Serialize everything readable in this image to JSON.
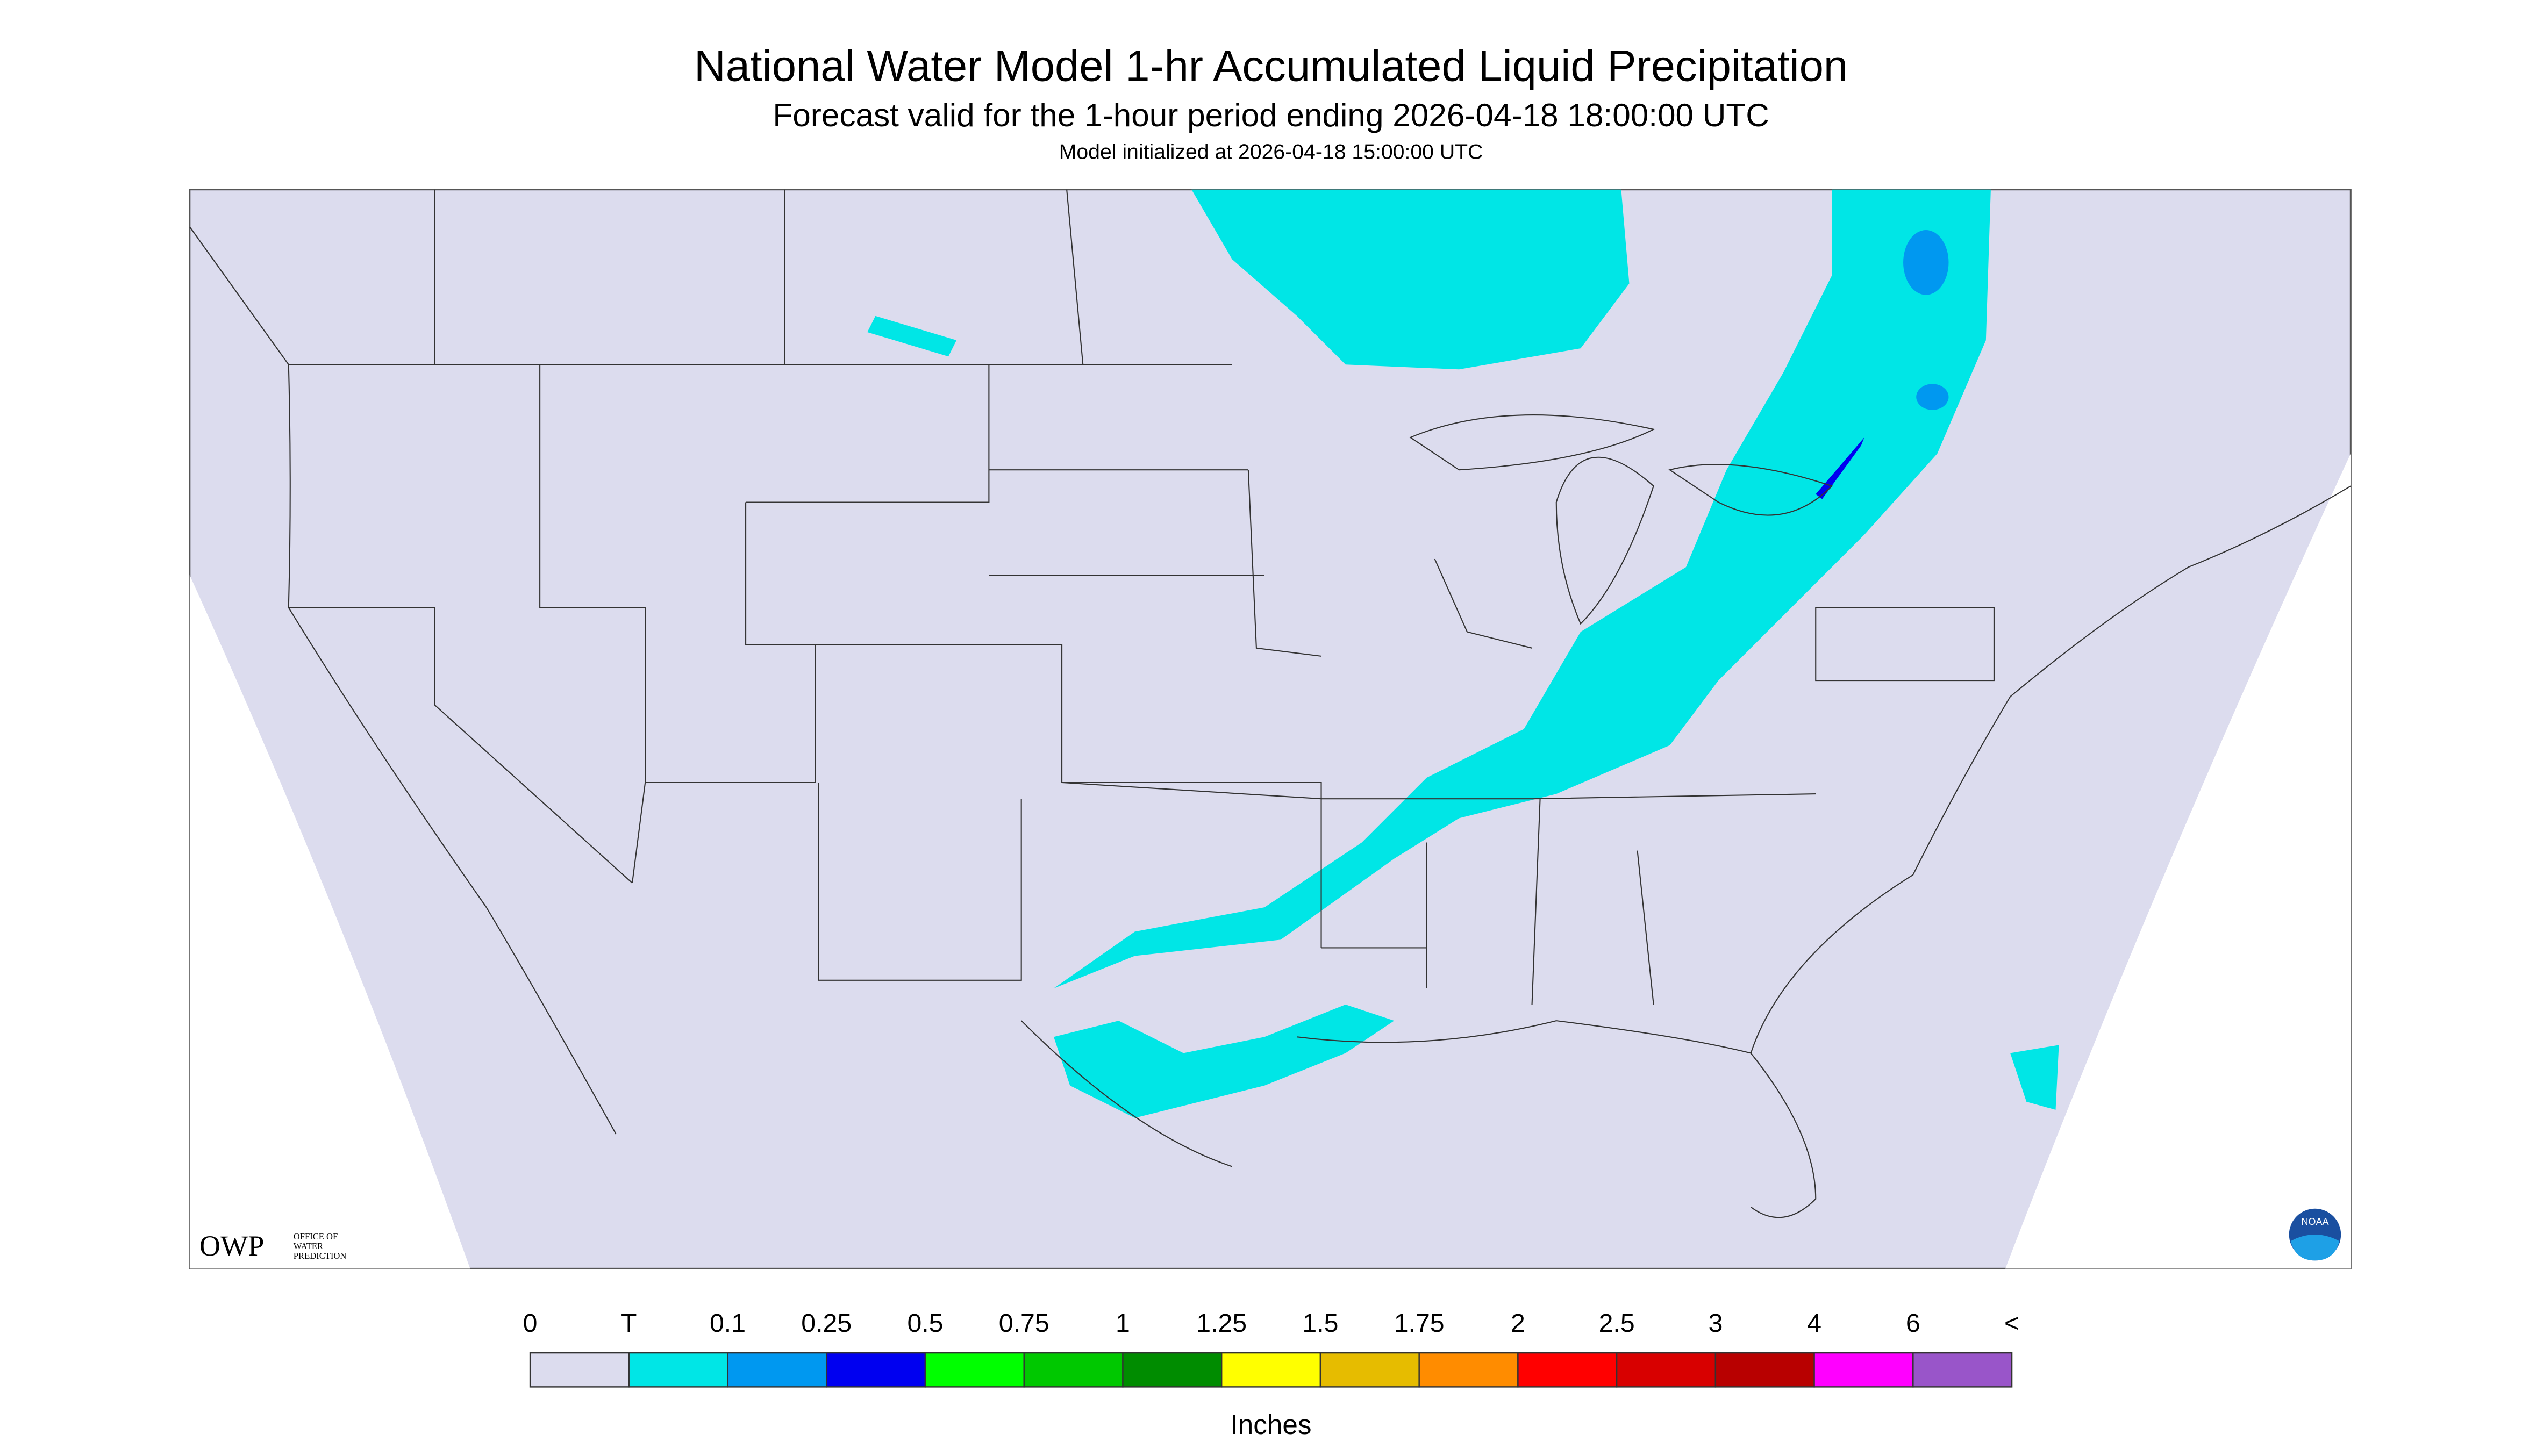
{
  "header": {
    "title": "National Water Model 1-hr Accumulated Liquid Precipitation",
    "subtitle": "Forecast valid for the 1-hour period ending 2026-04-18 18:00:00 UTC",
    "init": "Model initialized at 2026-04-18 15:00:00 UTC"
  },
  "logos": {
    "owp": "OWP",
    "owp_text": [
      "OFFICE OF",
      "WATER",
      "PREDICTION"
    ],
    "noaa": "NOAA"
  },
  "legend": {
    "labels": [
      "0",
      "T",
      "0.1",
      "0.25",
      "0.5",
      "0.75",
      "1",
      "1.25",
      "1.5",
      "1.75",
      "2",
      "2.5",
      "3",
      "4",
      "6",
      "<"
    ],
    "colors": [
      "#dcdcee",
      "#00e6e6",
      "#0098f0",
      "#0000f0",
      "#00ff00",
      "#00c800",
      "#008c00",
      "#ffff00",
      "#e6bc00",
      "#ff8c00",
      "#ff0000",
      "#d80000",
      "#b80000",
      "#ff00ff",
      "#9955c9"
    ],
    "unit": "Inches"
  }
}
